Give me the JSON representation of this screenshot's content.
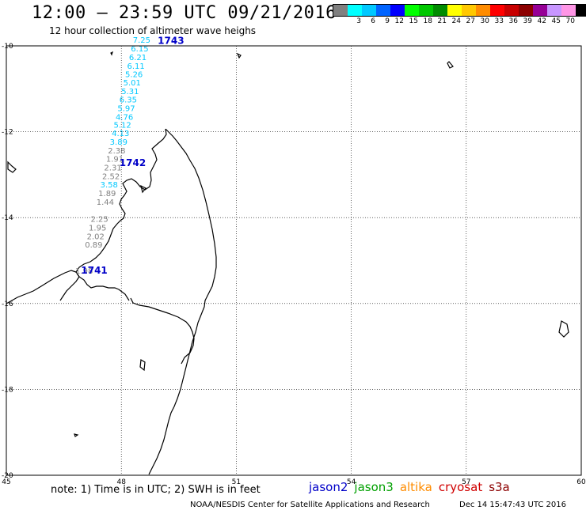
{
  "header": {
    "title": "12:00 – 23:59 UTC 09/21/2016",
    "subtitle": "12 hour collection of altimeter wave heighs"
  },
  "legend": {
    "unit": "(ft)",
    "items": [
      {
        "label": "",
        "color": "#808080"
      },
      {
        "label": "3",
        "color": "#00ffff"
      },
      {
        "label": "6",
        "color": "#00c8ff"
      },
      {
        "label": "9",
        "color": "#0064ff"
      },
      {
        "label": "12",
        "color": "#0000ff"
      },
      {
        "label": "15",
        "color": "#00ff00"
      },
      {
        "label": "18",
        "color": "#00c800"
      },
      {
        "label": "21",
        "color": "#008c00"
      },
      {
        "label": "24",
        "color": "#ffff00"
      },
      {
        "label": "27",
        "color": "#ffc800"
      },
      {
        "label": "30",
        "color": "#ff8c00"
      },
      {
        "label": "33",
        "color": "#ff0000"
      },
      {
        "label": "36",
        "color": "#c80000"
      },
      {
        "label": "39",
        "color": "#8c0000"
      },
      {
        "label": "42",
        "color": "#960096"
      },
      {
        "label": "45",
        "color": "#c896ff"
      },
      {
        "label": "70",
        "color": "#ff96e6"
      },
      {
        "label": "",
        "color": "#000000"
      }
    ]
  },
  "axes": {
    "lon_ticks": [
      "45",
      "48",
      "51",
      "54",
      "57",
      "60"
    ],
    "lat_ticks": [
      "-10",
      "-12",
      "-14",
      "-16",
      "-18",
      "-20"
    ],
    "lon_range": [
      45,
      60
    ],
    "lat_range": [
      -20,
      -10
    ]
  },
  "passes": [
    {
      "id": "1743",
      "lon": 48.95,
      "lat": -9.95
    },
    {
      "id": "1742",
      "lon": 47.95,
      "lat": -12.8
    },
    {
      "id": "1741",
      "lon": 46.95,
      "lat": -15.3
    }
  ],
  "observations": [
    {
      "value": "7.25",
      "lon": 48.3,
      "lat": -9.93,
      "color": "#00c8ff"
    },
    {
      "value": "6.15",
      "lon": 48.25,
      "lat": -10.13,
      "color": "#00c8ff"
    },
    {
      "value": "6.21",
      "lon": 48.2,
      "lat": -10.33,
      "color": "#00c8ff"
    },
    {
      "value": "6.11",
      "lon": 48.15,
      "lat": -10.53,
      "color": "#00c8ff"
    },
    {
      "value": "5.26",
      "lon": 48.1,
      "lat": -10.73,
      "color": "#00c8ff"
    },
    {
      "value": "5.01",
      "lon": 48.05,
      "lat": -10.92,
      "color": "#00c8ff"
    },
    {
      "value": "5.31",
      "lon": 48.0,
      "lat": -11.12,
      "color": "#00c8ff"
    },
    {
      "value": "6.35",
      "lon": 47.95,
      "lat": -11.32,
      "color": "#00c8ff"
    },
    {
      "value": "5.97",
      "lon": 47.9,
      "lat": -11.52,
      "color": "#00c8ff"
    },
    {
      "value": "4.76",
      "lon": 47.85,
      "lat": -11.72,
      "color": "#00c8ff"
    },
    {
      "value": "5.12",
      "lon": 47.8,
      "lat": -11.91,
      "color": "#00c8ff"
    },
    {
      "value": "4.13",
      "lon": 47.75,
      "lat": -12.1,
      "color": "#00c8ff"
    },
    {
      "value": "3.89",
      "lon": 47.7,
      "lat": -12.3,
      "color": "#00c8ff"
    },
    {
      "value": "2.38",
      "lon": 47.65,
      "lat": -12.5,
      "color": "#808080"
    },
    {
      "value": "1.91",
      "lon": 47.6,
      "lat": -12.7,
      "color": "#808080"
    },
    {
      "value": "2.31",
      "lon": 47.55,
      "lat": -12.9,
      "color": "#808080"
    },
    {
      "value": "2.52",
      "lon": 47.5,
      "lat": -13.1,
      "color": "#808080"
    },
    {
      "value": "3.58",
      "lon": 47.45,
      "lat": -13.3,
      "color": "#00c8ff"
    },
    {
      "value": "1.89",
      "lon": 47.4,
      "lat": -13.5,
      "color": "#808080"
    },
    {
      "value": "1.44",
      "lon": 47.35,
      "lat": -13.7,
      "color": "#808080"
    },
    {
      "value": "2.25",
      "lon": 47.2,
      "lat": -14.1,
      "color": "#808080"
    },
    {
      "value": "1.95",
      "lon": 47.15,
      "lat": -14.3,
      "color": "#808080"
    },
    {
      "value": "2.02",
      "lon": 47.1,
      "lat": -14.5,
      "color": "#808080"
    },
    {
      "value": "0.89",
      "lon": 47.05,
      "lat": -14.7,
      "color": "#808080"
    },
    {
      "value": "1.98",
      "lon": 46.8,
      "lat": -15.3,
      "color": "#808080"
    }
  ],
  "footer": {
    "note": "note: 1) Time is in UTC; 2) SWH is in feet",
    "satellites": [
      {
        "name": "jason2",
        "color": "#0000c8"
      },
      {
        "name": "jason3",
        "color": "#00a000"
      },
      {
        "name": "altika",
        "color": "#ff8c00"
      },
      {
        "name": "cryosat",
        "color": "#d00000"
      },
      {
        "name": "s3a",
        "color": "#8c0000"
      }
    ],
    "credit": "NOAA/NESDIS Center for Satellite Applications and Research",
    "timestamp": "Dec 14 15:47:43 UTC 2016"
  }
}
